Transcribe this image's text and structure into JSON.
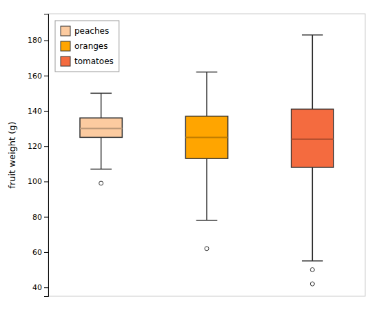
{
  "chart_data": {
    "type": "box",
    "ylabel": "fruit weight (g)",
    "series": [
      {
        "name": "peaches",
        "color": "#FCCBA0",
        "median": 130,
        "q1": 125,
        "q3": 136,
        "whisker_low": 107,
        "whisker_high": 150,
        "fliers": [
          99
        ]
      },
      {
        "name": "oranges",
        "color": "#FFA500",
        "median": 125,
        "q1": 113,
        "q3": 137,
        "whisker_low": 78,
        "whisker_high": 162,
        "fliers": [
          62
        ]
      },
      {
        "name": "tomatoes",
        "color": "#F46B3F",
        "median": 124,
        "q1": 108,
        "q3": 141,
        "whisker_low": 55,
        "whisker_high": 183,
        "fliers": [
          42,
          50
        ]
      }
    ],
    "ylim": [
      35,
      195
    ],
    "yticks": [
      40,
      60,
      80,
      100,
      120,
      140,
      160,
      180
    ],
    "grid": false,
    "legend": "upper left",
    "tick_labels": "y"
  }
}
